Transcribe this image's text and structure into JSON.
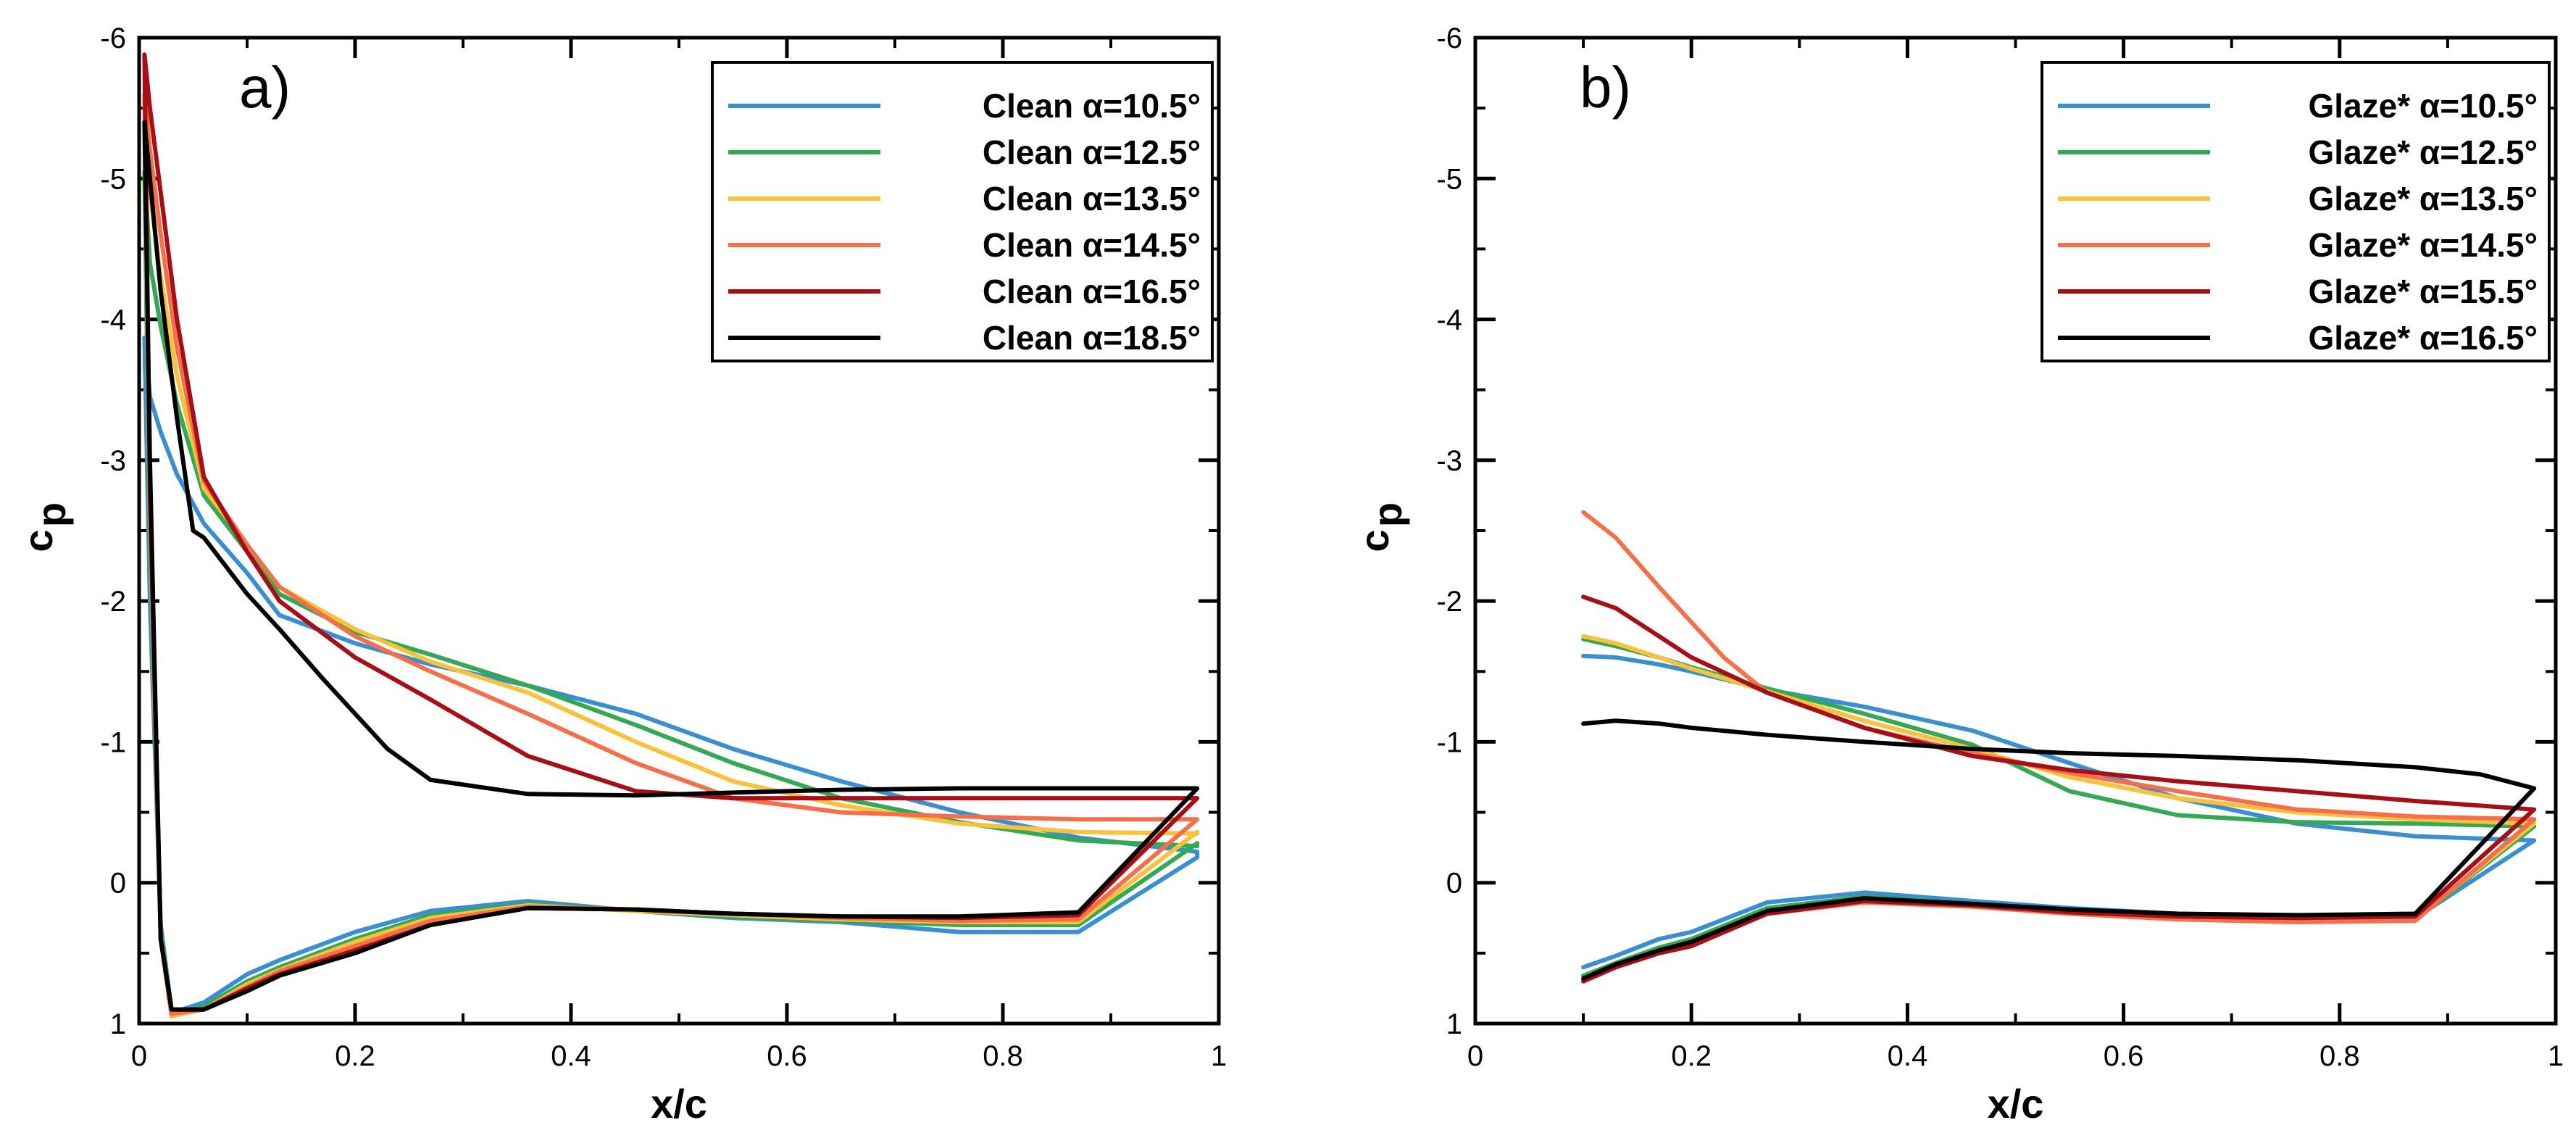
{
  "chart_data": [
    {
      "type": "line",
      "panel_label": "a)",
      "xlabel": "x/c",
      "ylabel_main": "c",
      "ylabel_sub": "p",
      "xlim": [
        0,
        1
      ],
      "ylim": [
        1,
        -6
      ],
      "y_inverted": true,
      "xticks": [
        0,
        0.2,
        0.4,
        0.6,
        0.8,
        1
      ],
      "xtick_labels": [
        "0",
        "0.2",
        "0.4",
        "0.6",
        "0.8",
        "1"
      ],
      "yticks": [
        1,
        0,
        -1,
        -2,
        -3,
        -4,
        -5,
        -6
      ],
      "ytick_labels": [
        "1",
        "0",
        "-1",
        "-2",
        "-3",
        "-4",
        "-5",
        "-6"
      ],
      "legend_position": "top-right",
      "series": [
        {
          "name": "Clean α=10.5°",
          "color": "#3A8FD0",
          "upper_x": [
            0.005,
            0.01,
            0.02,
            0.035,
            0.06,
            0.1,
            0.13,
            0.2,
            0.27,
            0.36,
            0.46,
            0.55,
            0.65,
            0.76,
            0.87,
            0.98
          ],
          "upper_y": [
            -3.87,
            -3.45,
            -3.2,
            -2.9,
            -2.55,
            -2.2,
            -1.9,
            -1.7,
            -1.55,
            -1.4,
            -1.2,
            -0.95,
            -0.72,
            -0.5,
            -0.32,
            -0.22
          ],
          "lower_x": [
            0.98,
            0.87,
            0.76,
            0.65,
            0.55,
            0.46,
            0.36,
            0.27,
            0.2,
            0.13,
            0.1,
            0.06,
            0.04,
            0.03,
            0.02,
            0.01,
            0.005
          ],
          "lower_y": [
            -0.18,
            0.35,
            0.35,
            0.28,
            0.25,
            0.2,
            0.13,
            0.2,
            0.35,
            0.55,
            0.65,
            0.85,
            0.9,
            0.9,
            0.3,
            -2.0,
            -3.87
          ]
        },
        {
          "name": "Clean α=12.5°",
          "color": "#34A853",
          "upper_x": [
            0.005,
            0.01,
            0.02,
            0.035,
            0.06,
            0.1,
            0.13,
            0.2,
            0.27,
            0.36,
            0.46,
            0.55,
            0.65,
            0.76,
            0.87,
            0.98
          ],
          "upper_y": [
            -5.05,
            -4.4,
            -3.95,
            -3.4,
            -2.75,
            -2.35,
            -2.05,
            -1.78,
            -1.62,
            -1.4,
            -1.12,
            -0.85,
            -0.6,
            -0.43,
            -0.3,
            -0.26
          ],
          "lower_x": [
            0.98,
            0.87,
            0.76,
            0.65,
            0.55,
            0.46,
            0.36,
            0.27,
            0.2,
            0.13,
            0.1,
            0.06,
            0.04,
            0.03,
            0.02,
            0.01,
            0.005
          ],
          "lower_y": [
            -0.28,
            0.3,
            0.3,
            0.27,
            0.24,
            0.2,
            0.15,
            0.23,
            0.4,
            0.6,
            0.7,
            0.88,
            0.92,
            0.92,
            0.35,
            -2.4,
            -5.05
          ]
        },
        {
          "name": "Clean α=13.5°",
          "color": "#F9C23C",
          "upper_x": [
            0.005,
            0.01,
            0.02,
            0.035,
            0.06,
            0.1,
            0.13,
            0.2,
            0.27,
            0.36,
            0.46,
            0.55,
            0.65,
            0.76,
            0.87,
            0.98
          ],
          "upper_y": [
            -5.4,
            -4.9,
            -4.3,
            -3.6,
            -2.8,
            -2.4,
            -2.1,
            -1.8,
            -1.57,
            -1.35,
            -1.0,
            -0.72,
            -0.55,
            -0.42,
            -0.36,
            -0.35
          ],
          "lower_x": [
            0.98,
            0.87,
            0.76,
            0.65,
            0.55,
            0.46,
            0.36,
            0.27,
            0.2,
            0.13,
            0.1,
            0.06,
            0.04,
            0.03,
            0.02,
            0.01,
            0.005
          ],
          "lower_y": [
            -0.36,
            0.28,
            0.28,
            0.26,
            0.23,
            0.2,
            0.16,
            0.25,
            0.42,
            0.62,
            0.72,
            0.9,
            0.93,
            0.95,
            0.4,
            -2.6,
            -5.4
          ]
        },
        {
          "name": "Clean α=14.5°",
          "color": "#F4704A",
          "upper_x": [
            0.005,
            0.01,
            0.02,
            0.035,
            0.06,
            0.1,
            0.13,
            0.2,
            0.27,
            0.36,
            0.46,
            0.55,
            0.65,
            0.76,
            0.87,
            0.98
          ],
          "upper_y": [
            -5.6,
            -5.2,
            -4.6,
            -3.8,
            -2.85,
            -2.4,
            -2.1,
            -1.75,
            -1.5,
            -1.2,
            -0.85,
            -0.6,
            -0.5,
            -0.47,
            -0.45,
            -0.45
          ],
          "lower_x": [
            0.98,
            0.87,
            0.76,
            0.65,
            0.55,
            0.46,
            0.36,
            0.27,
            0.2,
            0.13,
            0.1,
            0.06,
            0.04,
            0.03,
            0.02,
            0.01,
            0.005
          ],
          "lower_y": [
            -0.45,
            0.26,
            0.27,
            0.25,
            0.22,
            0.19,
            0.17,
            0.27,
            0.45,
            0.63,
            0.74,
            0.9,
            0.92,
            0.93,
            0.4,
            -2.7,
            -5.6
          ]
        },
        {
          "name": "Clean α=16.5°",
          "color": "#A50F15",
          "upper_x": [
            0.005,
            0.01,
            0.02,
            0.035,
            0.06,
            0.1,
            0.13,
            0.2,
            0.27,
            0.36,
            0.46,
            0.55,
            0.65,
            0.76,
            0.87,
            0.98
          ],
          "upper_y": [
            -5.88,
            -5.5,
            -4.9,
            -4.0,
            -2.88,
            -2.35,
            -2.0,
            -1.6,
            -1.3,
            -0.9,
            -0.65,
            -0.6,
            -0.6,
            -0.6,
            -0.6,
            -0.6
          ],
          "lower_x": [
            0.98,
            0.87,
            0.76,
            0.65,
            0.55,
            0.46,
            0.36,
            0.27,
            0.2,
            0.13,
            0.1,
            0.06,
            0.04,
            0.03,
            0.02,
            0.01,
            0.005
          ],
          "lower_y": [
            -0.6,
            0.23,
            0.25,
            0.24,
            0.22,
            0.19,
            0.18,
            0.3,
            0.48,
            0.65,
            0.75,
            0.9,
            0.9,
            0.9,
            0.4,
            -2.8,
            -5.88
          ]
        },
        {
          "name": "Clean α=18.5°",
          "color": "#000000",
          "upper_x": [
            0.005,
            0.01,
            0.02,
            0.035,
            0.05,
            0.06,
            0.1,
            0.13,
            0.17,
            0.2,
            0.23,
            0.27,
            0.36,
            0.46,
            0.55,
            0.65,
            0.76,
            0.87,
            0.98
          ],
          "upper_y": [
            -5.4,
            -5.0,
            -4.2,
            -3.3,
            -2.5,
            -2.45,
            -2.05,
            -1.8,
            -1.45,
            -1.2,
            -0.95,
            -0.73,
            -0.63,
            -0.62,
            -0.64,
            -0.66,
            -0.67,
            -0.67,
            -0.67
          ],
          "lower_x": [
            0.98,
            0.87,
            0.76,
            0.65,
            0.55,
            0.46,
            0.36,
            0.27,
            0.2,
            0.13,
            0.1,
            0.06,
            0.05,
            0.03,
            0.02,
            0.01,
            0.005
          ],
          "lower_y": [
            -0.67,
            0.21,
            0.24,
            0.24,
            0.22,
            0.19,
            0.18,
            0.3,
            0.5,
            0.66,
            0.77,
            0.9,
            0.9,
            0.9,
            0.4,
            -3.0,
            -5.4
          ]
        }
      ]
    },
    {
      "type": "line",
      "panel_label": "b)",
      "xlabel": "x/c",
      "ylabel_main": "c",
      "ylabel_sub": "p",
      "xlim": [
        0,
        1
      ],
      "ylim": [
        1,
        -6
      ],
      "y_inverted": true,
      "xticks": [
        0,
        0.2,
        0.4,
        0.6,
        0.8,
        1
      ],
      "xtick_labels": [
        "0",
        "0.2",
        "0.4",
        "0.6",
        "0.8",
        "1"
      ],
      "yticks": [
        1,
        0,
        -1,
        -2,
        -3,
        -4,
        -5,
        -6
      ],
      "ytick_labels": [
        "1",
        "0",
        "-1",
        "-2",
        "-3",
        "-4",
        "-5",
        "-6"
      ],
      "legend_position": "top-right",
      "series": [
        {
          "name": "Glaze* α=10.5°",
          "color": "#3A8FD0",
          "upper_x": [
            0.1,
            0.13,
            0.17,
            0.2,
            0.27,
            0.36,
            0.46,
            0.55,
            0.65,
            0.76,
            0.87,
            0.98
          ],
          "upper_y": [
            -1.61,
            -1.6,
            -1.55,
            -1.5,
            -1.37,
            -1.25,
            -1.08,
            -0.85,
            -0.6,
            -0.42,
            -0.33,
            -0.3
          ],
          "lower_x": [
            0.98,
            0.87,
            0.76,
            0.65,
            0.55,
            0.46,
            0.36,
            0.27,
            0.2,
            0.17,
            0.13,
            0.1
          ],
          "lower_y": [
            -0.3,
            0.25,
            0.25,
            0.22,
            0.18,
            0.13,
            0.07,
            0.14,
            0.35,
            0.4,
            0.52,
            0.6
          ]
        },
        {
          "name": "Glaze* α=12.5°",
          "color": "#34A853",
          "upper_x": [
            0.1,
            0.13,
            0.17,
            0.2,
            0.27,
            0.36,
            0.46,
            0.55,
            0.65,
            0.76,
            0.87,
            0.98
          ],
          "upper_y": [
            -1.73,
            -1.68,
            -1.6,
            -1.53,
            -1.38,
            -1.2,
            -0.98,
            -0.65,
            -0.48,
            -0.43,
            -0.42,
            -0.4
          ],
          "lower_x": [
            0.98,
            0.87,
            0.76,
            0.65,
            0.55,
            0.46,
            0.36,
            0.27,
            0.2,
            0.17,
            0.13,
            0.1
          ],
          "lower_y": [
            -0.4,
            0.26,
            0.27,
            0.24,
            0.2,
            0.15,
            0.1,
            0.18,
            0.4,
            0.46,
            0.57,
            0.66
          ]
        },
        {
          "name": "Glaze* α=13.5°",
          "color": "#F9C23C",
          "upper_x": [
            0.1,
            0.13,
            0.17,
            0.2,
            0.27,
            0.36,
            0.46,
            0.55,
            0.65,
            0.76,
            0.87,
            0.98
          ],
          "upper_y": [
            -1.75,
            -1.7,
            -1.6,
            -1.52,
            -1.36,
            -1.15,
            -0.95,
            -0.75,
            -0.6,
            -0.5,
            -0.45,
            -0.42
          ],
          "lower_x": [
            0.98,
            0.87,
            0.76,
            0.65,
            0.55,
            0.46,
            0.36,
            0.27,
            0.2,
            0.17,
            0.13,
            0.1
          ],
          "lower_y": [
            -0.42,
            0.26,
            0.27,
            0.25,
            0.21,
            0.16,
            0.12,
            0.2,
            0.42,
            0.48,
            0.58,
            0.68
          ]
        },
        {
          "name": "Glaze* α=14.5°",
          "color": "#F4704A",
          "upper_x": [
            0.1,
            0.13,
            0.17,
            0.2,
            0.23,
            0.27,
            0.36,
            0.46,
            0.55,
            0.65,
            0.76,
            0.87,
            0.98
          ],
          "upper_y": [
            -2.63,
            -2.45,
            -2.1,
            -1.85,
            -1.6,
            -1.35,
            -1.1,
            -0.92,
            -0.78,
            -0.65,
            -0.52,
            -0.47,
            -0.45
          ],
          "lower_x": [
            0.98,
            0.87,
            0.76,
            0.65,
            0.55,
            0.46,
            0.36,
            0.27,
            0.2,
            0.17,
            0.13,
            0.1
          ],
          "lower_y": [
            -0.45,
            0.27,
            0.28,
            0.26,
            0.22,
            0.17,
            0.14,
            0.22,
            0.45,
            0.5,
            0.6,
            0.7
          ]
        },
        {
          "name": "Glaze* α=15.5°",
          "color": "#A50F15",
          "upper_x": [
            0.1,
            0.13,
            0.17,
            0.2,
            0.27,
            0.36,
            0.46,
            0.55,
            0.65,
            0.76,
            0.87,
            0.98
          ],
          "upper_y": [
            -2.03,
            -1.95,
            -1.75,
            -1.6,
            -1.35,
            -1.1,
            -0.9,
            -0.8,
            -0.72,
            -0.65,
            -0.58,
            -0.52
          ],
          "lower_x": [
            0.98,
            0.87,
            0.76,
            0.65,
            0.55,
            0.46,
            0.36,
            0.27,
            0.2,
            0.17,
            0.13,
            0.1
          ],
          "lower_y": [
            -0.52,
            0.24,
            0.25,
            0.24,
            0.21,
            0.16,
            0.13,
            0.22,
            0.45,
            0.5,
            0.6,
            0.7
          ]
        },
        {
          "name": "Glaze* α=16.5°",
          "color": "#000000",
          "upper_x": [
            0.1,
            0.13,
            0.17,
            0.2,
            0.27,
            0.36,
            0.46,
            0.55,
            0.65,
            0.76,
            0.87,
            0.93,
            0.98
          ],
          "upper_y": [
            -1.13,
            -1.15,
            -1.13,
            -1.1,
            -1.05,
            -1.0,
            -0.95,
            -0.92,
            -0.9,
            -0.87,
            -0.82,
            -0.77,
            -0.67
          ],
          "lower_x": [
            0.98,
            0.87,
            0.76,
            0.65,
            0.55,
            0.46,
            0.36,
            0.27,
            0.2,
            0.17,
            0.13,
            0.1
          ],
          "lower_y": [
            -0.67,
            0.22,
            0.23,
            0.22,
            0.19,
            0.15,
            0.11,
            0.2,
            0.42,
            0.48,
            0.58,
            0.68
          ]
        }
      ]
    }
  ]
}
